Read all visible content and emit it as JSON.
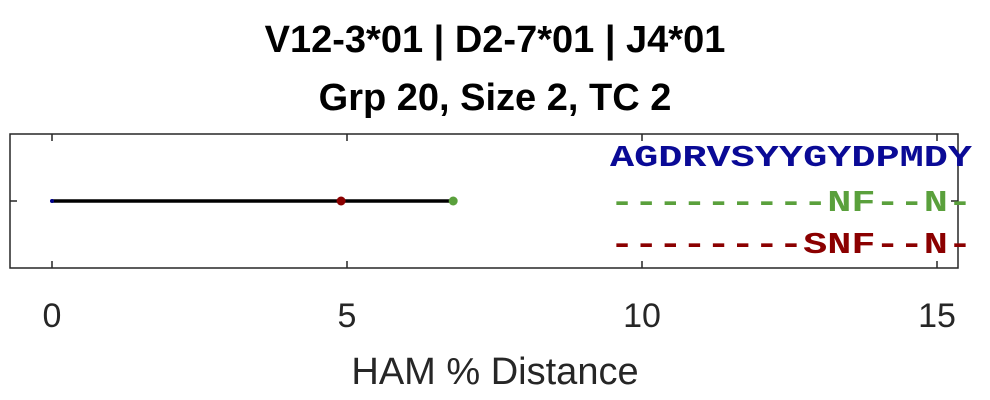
{
  "chart_data": {
    "type": "line",
    "title": [
      "V12-3*01 | D2-7*01 | J4*01",
      "Grp 20, Size 2, TC 2"
    ],
    "xlabel": "HAM % Distance",
    "ylabel": "",
    "xlim": [
      0,
      15.5
    ],
    "xticks": [
      0,
      5,
      10,
      15
    ],
    "tick_labels": [
      "0",
      "5",
      "10",
      "15"
    ],
    "grid": false,
    "series": [
      {
        "values": [
          {
            "x": 0,
            "y": 0
          },
          {
            "x": 6.8,
            "y": 0
          }
        ],
        "color": "#000000"
      }
    ],
    "points": [
      {
        "x": 0,
        "color": "#00008b"
      },
      {
        "x": 4.9,
        "color": "#8b0000"
      },
      {
        "x": 6.8,
        "color": "#5aa03c"
      }
    ],
    "sequences": [
      {
        "text": "AGDRVSYYGYDPMDY",
        "color": "#0a0a96"
      },
      {
        "text": "---------NF--N-",
        "color": "#5aa03c"
      },
      {
        "text": "--------SNF--N-",
        "color": "#8b0000"
      }
    ]
  }
}
